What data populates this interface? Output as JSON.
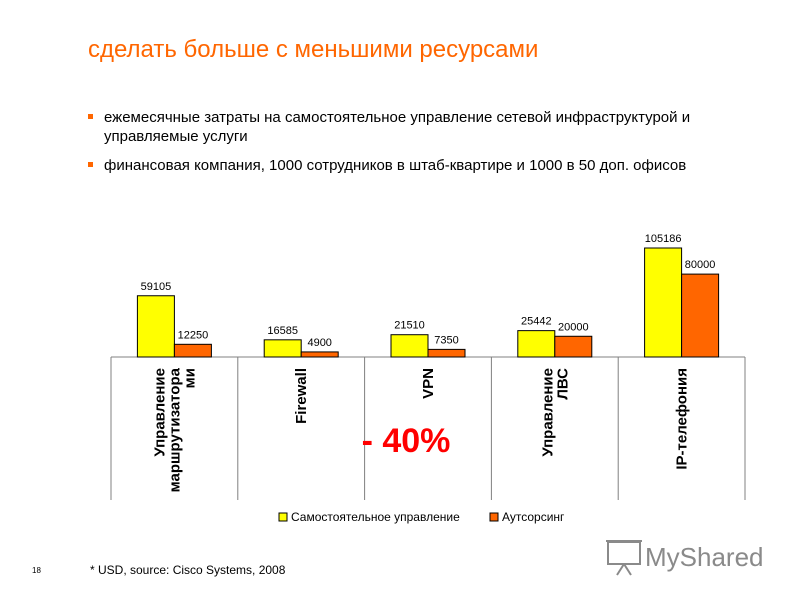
{
  "slide": {
    "title": "сделать больше с меньшими ресурсами",
    "bullets": [
      "ежемесячные затраты на самостоятельное управление сетевой инфраструктурой и управляемые услуги",
      "финансовая компания, 1000 сотрудников в штаб-квартире и 1000 в 50 доп. офисов"
    ],
    "footnote": "* USD, source: Cisco Systems, 2008",
    "page_number": "18",
    "accent_color": "#ff6600"
  },
  "chart_data": {
    "type": "bar",
    "categories": [
      "Управление маршрутизатора ми",
      "Firewall",
      "VPN",
      "Управление ЛВС",
      "IP-телефония"
    ],
    "series": [
      {
        "name": "Самостоятельное управление",
        "color": "#ffff00",
        "values": [
          59105,
          16585,
          21510,
          25442,
          105186
        ]
      },
      {
        "name": "Аутсорсинг",
        "color": "#ff6600",
        "values": [
          12250,
          4900,
          7350,
          20000,
          80000
        ]
      }
    ],
    "annotation": "- 40%",
    "legend_position": "bottom",
    "grid": false,
    "ylim": [
      0,
      105186
    ]
  },
  "watermark": {
    "text": "MyShared",
    "icon": "projector-screen-icon"
  }
}
